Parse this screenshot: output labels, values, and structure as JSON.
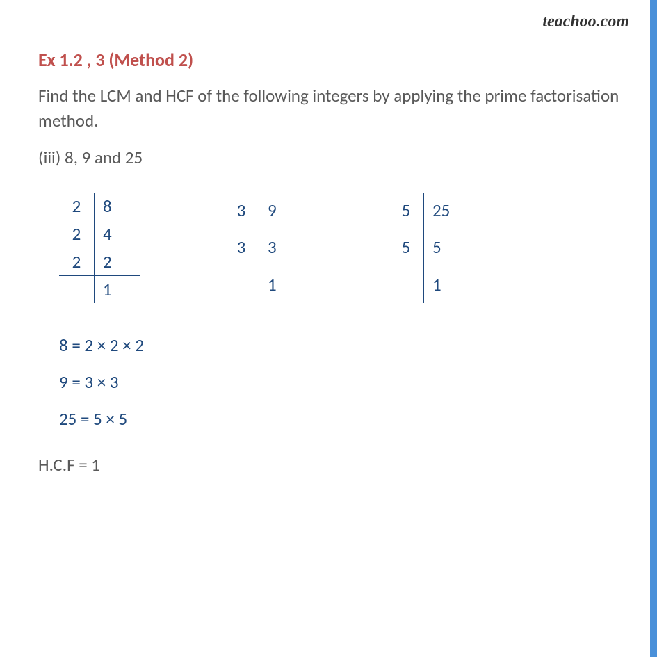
{
  "watermark": "teachoo.com",
  "title": "Ex 1.2 , 3 (Method 2)",
  "question": "Find the LCM and HCF of the following integers by applying the prime factorisation method.",
  "subpart": "(iii) 8, 9 and 25",
  "tables": {
    "t1": {
      "rows": [
        {
          "d": "2",
          "n": "8"
        },
        {
          "d": "2",
          "n": "4"
        },
        {
          "d": "2",
          "n": "2"
        },
        {
          "d": "",
          "n": "1"
        }
      ]
    },
    "t2": {
      "rows": [
        {
          "d": "3",
          "n": "9"
        },
        {
          "d": "3",
          "n": "3"
        },
        {
          "d": "",
          "n": "1"
        }
      ]
    },
    "t3": {
      "rows": [
        {
          "d": "5",
          "n": "25"
        },
        {
          "d": "5",
          "n": "5"
        },
        {
          "d": "",
          "n": "1"
        }
      ]
    }
  },
  "equations": {
    "e1": "8 = 2 × 2 × 2",
    "e2": "9 = 3 × 3",
    "e3": "25 = 5 × 5"
  },
  "hcf": "H.C.F = 1",
  "colors": {
    "title_color": "#c0504d",
    "body_text_color": "#595959",
    "math_color": "#1f497d",
    "sidebar_color": "#4a90d9",
    "background": "#ffffff"
  },
  "fonts": {
    "body_size_pt": 19,
    "title_weight": "bold"
  }
}
